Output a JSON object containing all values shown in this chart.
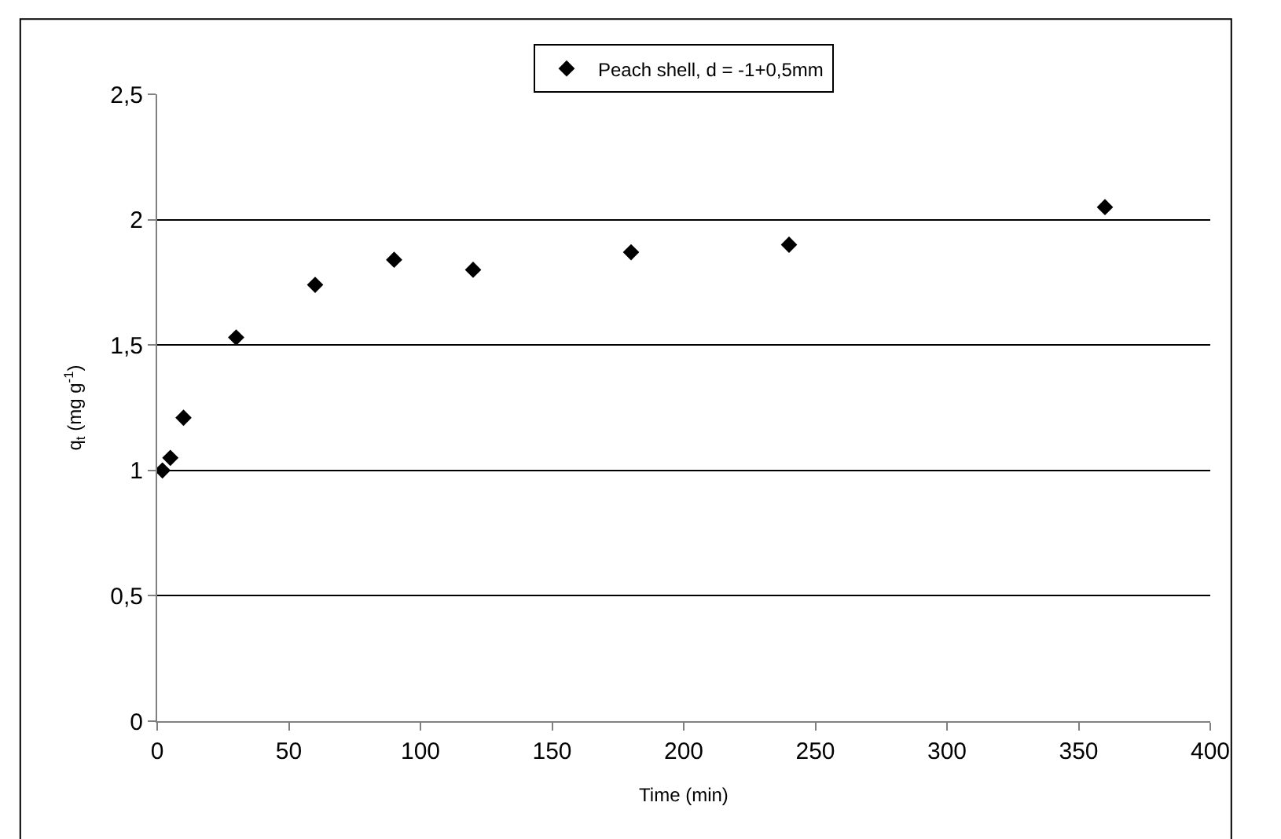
{
  "chart_data": {
    "type": "scatter",
    "xlabel": "Time (min)",
    "ylabel": "q$_{t}$ (mg g$^{-1}$)",
    "x": [
      2,
      5,
      10,
      30,
      60,
      90,
      120,
      180,
      240,
      360
    ],
    "series": [
      {
        "name": "Peach shell, d = -1+0,5mm",
        "color": "#000000",
        "values": [
          1.0,
          1.05,
          1.21,
          1.53,
          1.74,
          1.84,
          1.8,
          1.87,
          1.9,
          2.05
        ]
      }
    ],
    "xlim": [
      0,
      400
    ],
    "xticks": [
      0,
      50,
      100,
      150,
      200,
      250,
      300,
      350,
      400
    ],
    "ylim": [
      0,
      2.5
    ],
    "yticks": [
      0,
      {
        "value": 0.5,
        "label": "0,5"
      },
      1,
      {
        "value": 1.5,
        "label": "1,5"
      },
      2,
      {
        "value": 2.5,
        "label": "2,5"
      }
    ],
    "grid": "y",
    "legend": "top",
    "marker": "diamond"
  }
}
